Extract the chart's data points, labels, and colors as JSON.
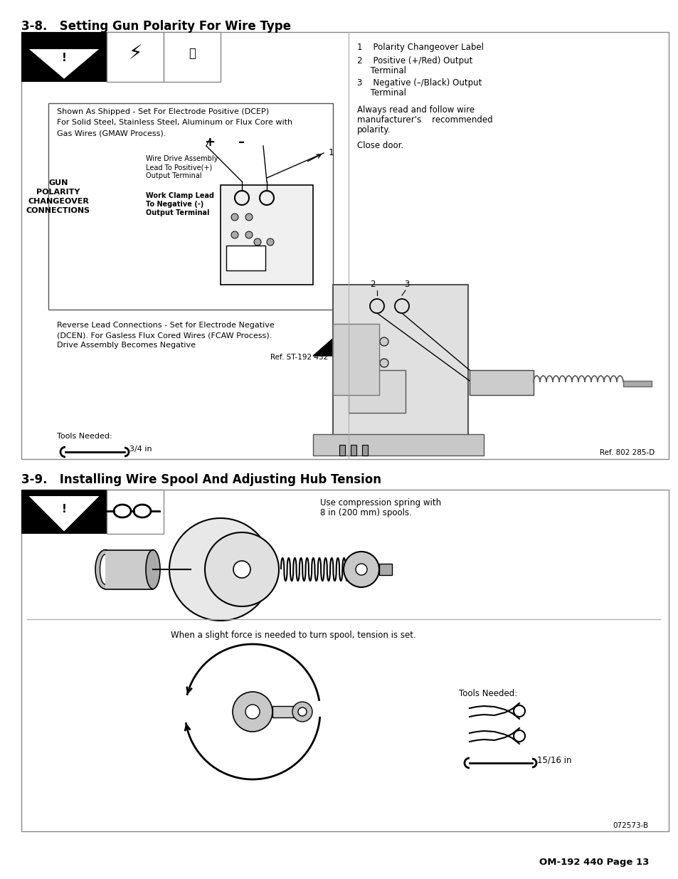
{
  "title1": "3-8.   Setting Gun Polarity For Wire Type",
  "title2": "3-9.   Installing Wire Spool And Adjusting Hub Tension",
  "item1": "1    Polarity Changeover Label",
  "item2a": "2    Positive (+/Red) Output",
  "item2b": "     Terminal",
  "item3a": "3    Negative (–/Black) Output",
  "item3b": "     Terminal",
  "para1a": "Always read and follow wire",
  "para1b": "manufacturer's    recommended",
  "para1c": "polarity.",
  "para2": "Close door.",
  "inner_box_line1": "Shown As Shipped - Set For Electrode Positive (DCEP)",
  "inner_box_line2": "For Solid Steel, Stainless Steel, Aluminum or Flux Core with",
  "inner_box_line3": "Gas Wires (GMAW Process).",
  "gun_label_line1": "GUN",
  "gun_label_line2": "POLARITY",
  "gun_label_line3": "CHANGEOVER",
  "gun_label_line4": "CONNECTIONS",
  "wire_drive_line1": "Wire Drive Assembly",
  "wire_drive_line2": "Lead To Positive(+)",
  "wire_drive_line3": "Output Terminal",
  "work_clamp_line1": "Work Clamp Lead",
  "work_clamp_line2": "To Negative (-)",
  "work_clamp_line3": "Output Terminal",
  "reverse_lead_line1": "Reverse Lead Connections - Set for Electrode Negative",
  "reverse_lead_line2": "(DCEN). For Gasless Flux Cored Wires (FCAW Process).",
  "reverse_lead_line3": "Drive Assembly Becomes Negative",
  "ref1": "Ref. ST-192 432",
  "ref2": "Ref. 802 285-D",
  "ref3": "072573-B",
  "tools_needed1": "Tools Needed:",
  "tools_size1": "3/4 in",
  "tools_needed2": "Tools Needed:",
  "tools_size2": "15/16 in",
  "compression_line1": "Use compression spring with",
  "compression_line2": "8 in (200 mm) spools.",
  "tension_text": "When a slight force is needed to turn spool, tension is set.",
  "page_footer": "OM-192 440 Page 13",
  "bg_color": "#ffffff",
  "box_border_color": "#777777",
  "text_color": "#000000",
  "warn_black": "#000000",
  "warn_dark": "#1a1a1a"
}
